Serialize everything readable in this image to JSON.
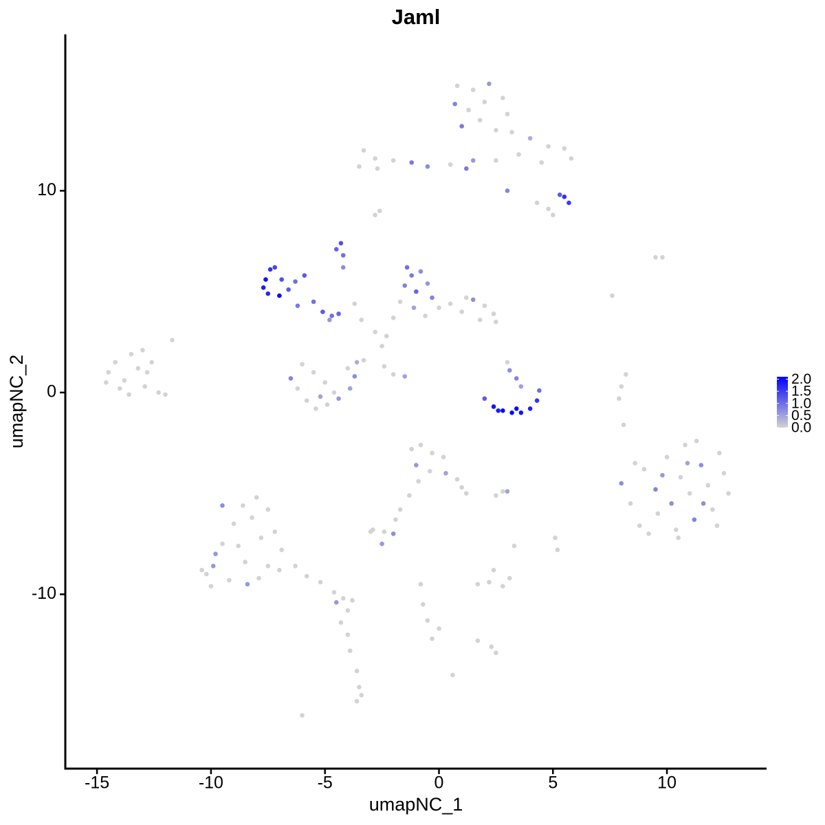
{
  "chart_data": {
    "type": "scatter",
    "title": "Jaml",
    "x_label": "umapNC_1",
    "y_label": "umapNC_2",
    "xlim": [
      -16.39,
      14.37
    ],
    "ylim": [
      -18.64,
      17.75
    ],
    "xticks": [
      -15,
      -10,
      -5,
      0,
      5,
      10
    ],
    "yticks": [
      -10,
      0,
      10
    ],
    "colors": [
      "#d3d3d3",
      "#0000ff"
    ],
    "clim": [
      0,
      2.1
    ],
    "colorbar_ticks": [
      {
        "value": 0,
        "label": "0.0"
      },
      {
        "value": 0.5,
        "label": "0.5"
      },
      {
        "value": 1,
        "label": "1.0"
      },
      {
        "value": 1.5,
        "label": "1.5"
      },
      {
        "value": 2,
        "label": "2.0"
      }
    ],
    "x": [
      -14.5,
      -14.2,
      -13.8,
      -13.5,
      -13.2,
      -12.9,
      -13.0,
      -12.6,
      -14.0,
      -12.3,
      -13.6,
      -12.0,
      -11.7,
      -12.8,
      -14.6,
      0.8,
      1.5,
      2.2,
      0.7,
      1.3,
      2.0,
      2.8,
      3.0,
      1.0,
      1.8,
      2.5,
      3.2,
      4.0,
      4.8,
      5.5,
      5.8,
      4.5,
      3.5,
      2.5,
      1.2,
      0.5,
      -0.5,
      -1.2,
      -2.0,
      -2.8,
      -3.3,
      -2.7,
      -3.5,
      5.5,
      5.7,
      5.3,
      4.8,
      4.3,
      5.0,
      3.0,
      1.5,
      -2.8,
      -2.6,
      -7.6,
      -7.7,
      -7.4,
      -7.2,
      -7.0,
      -7.5,
      -6.9,
      -6.6,
      -6.3,
      -5.9,
      -5.5,
      -5.1,
      -4.7,
      -4.4,
      -4.8,
      -6.2,
      -4.3,
      -4.5,
      -4.2,
      -4.2,
      -3.7,
      -3.4,
      -2.8,
      -1.4,
      -1.2,
      -0.8,
      -1.5,
      -1.0,
      -0.5,
      -0.3,
      -1.7,
      -1.1,
      -0.6,
      0,
      0.5,
      1.0,
      1.5,
      2.0,
      2.4,
      2.5,
      1.8,
      1.2,
      -2.0,
      -2.3,
      -2.5,
      -3.3,
      -2.4,
      -2.0,
      -1.5,
      -6.5,
      -6.2,
      -5.8,
      -5.4,
      -4.9,
      -4.4,
      -3.9,
      -3.7,
      -4.0,
      -5.0,
      -5.5,
      -6.0,
      -4.6,
      -5.2,
      -3.6,
      2.0,
      2.4,
      2.8,
      3.2,
      3.6,
      4.0,
      4.3,
      4.4,
      3.1,
      3.4,
      3.6,
      3.0,
      2.6,
      3.4,
      8.0,
      8.4,
      8.8,
      9.2,
      9.0,
      9.5,
      9.6,
      10.0,
      10.2,
      10.4,
      10.6,
      10.8,
      11.0,
      11.2,
      11.5,
      11.8,
      12.0,
      12.3,
      12.5,
      12.7,
      12.2,
      10.5,
      9.8,
      11.3,
      11.6,
      8.6,
      10.9,
      8.0,
      7.9,
      8.1,
      8.2,
      9.5,
      9.8,
      7.6,
      -1.2,
      -0.8,
      -0.3,
      0.2,
      -1.0,
      -0.4,
      0.3,
      0.8,
      1.2,
      -0.9,
      -1.3,
      -1.7,
      -1.9,
      1.0,
      2.8,
      3.0,
      2.5,
      -2.9,
      -2.4,
      -2.0,
      -2.5,
      -3.0,
      1.7,
      2.2,
      2.8,
      3.1,
      2.4,
      3.3,
      5.1,
      5.2,
      -0.8,
      -0.7,
      -0.5,
      0,
      -0.3,
      1.7,
      2.3,
      2.5,
      0.6,
      -6.0,
      -9.9,
      -10.2,
      -10.4,
      -10.0,
      -9.5,
      -9.8,
      -9.2,
      -9.0,
      -8.8,
      -8.5,
      -8.4,
      -8.6,
      -8.2,
      -7.8,
      -7.5,
      -7.9,
      -8.0,
      -7.5,
      -7.2,
      -6.9,
      -9.5,
      -7.0,
      -6.3,
      -5.8,
      -5.2,
      -4.6,
      -4.2,
      -4.5,
      -3.8,
      -4.0,
      -4.3,
      -4.0,
      -3.9,
      -3.6,
      -3.5,
      -3.4,
      -3.6
    ],
    "y": [
      1.0,
      1.5,
      0.6,
      1.9,
      1.2,
      0.3,
      2.1,
      1.5,
      0.2,
      0.0,
      -0.1,
      -0.1,
      2.6,
      1.0,
      0.5,
      15.2,
      15.0,
      15.3,
      14.3,
      14.0,
      14.4,
      14.6,
      13.8,
      13.2,
      13.5,
      13.0,
      12.9,
      12.6,
      12.2,
      12.1,
      11.6,
      11.4,
      11.8,
      11.5,
      11.1,
      11.3,
      11.2,
      11.4,
      11.5,
      11.6,
      12.0,
      11.1,
      11.2,
      9.7,
      9.4,
      9.8,
      9.1,
      9.4,
      8.8,
      10.0,
      11.5,
      8.8,
      9.0,
      5.6,
      5.2,
      6.1,
      6.2,
      4.8,
      4.9,
      5.6,
      5.1,
      5.5,
      5.8,
      4.5,
      4.0,
      3.8,
      3.9,
      3.6,
      4.3,
      7.4,
      7.1,
      6.8,
      6.2,
      4.4,
      3.6,
      3.0,
      6.2,
      5.8,
      6.0,
      5.3,
      5.0,
      5.4,
      4.7,
      4.5,
      4.2,
      3.8,
      4.2,
      4.4,
      4.0,
      4.6,
      4.3,
      3.9,
      3.5,
      3.6,
      4.7,
      3.7,
      2.8,
      2.3,
      1.6,
      1.3,
      0.9,
      0.8,
      0.7,
      0.2,
      -0.4,
      -0.8,
      -0.6,
      -0.3,
      0.2,
      0.8,
      1.2,
      0.5,
      1.0,
      1.4,
      0.0,
      -0.2,
      1.5,
      -0.3,
      -0.7,
      -0.9,
      -1.0,
      -1.0,
      -0.8,
      -0.4,
      0.1,
      1.1,
      0.7,
      0.3,
      1.5,
      -0.9,
      -0.8,
      -4.5,
      -5.5,
      -6.6,
      -7.0,
      -3.8,
      -4.8,
      -6.0,
      -3.2,
      -5.5,
      -6.8,
      -4.2,
      -2.6,
      -5.0,
      -6.3,
      -3.6,
      -4.6,
      -5.8,
      -3.0,
      -4.0,
      -5.0,
      -6.6,
      -7.2,
      -4.1,
      -2.4,
      -5.5,
      -3.5,
      -3.5,
      0.3,
      -0.3,
      -1.6,
      0.9,
      6.7,
      6.7,
      4.8,
      -2.8,
      -2.6,
      -3.0,
      -3.2,
      -3.6,
      -3.9,
      -4.0,
      -4.3,
      -5.0,
      -4.4,
      -5.1,
      -5.8,
      -6.3,
      -4.7,
      -4.9,
      -4.9,
      -5.1,
      -6.8,
      -6.9,
      -7.0,
      -7.5,
      -6.9,
      -9.5,
      -9.4,
      -9.6,
      -9.2,
      -8.8,
      -7.6,
      -7.2,
      -7.8,
      -9.5,
      -10.5,
      -11.3,
      -11.7,
      -12.2,
      -12.3,
      -12.6,
      -12.9,
      -14.0,
      -16.0,
      -8.6,
      -9.0,
      -8.8,
      -9.6,
      -7.5,
      -8.0,
      -9.3,
      -6.5,
      -7.6,
      -8.4,
      -9.5,
      -5.6,
      -6.2,
      -7.2,
      -8.6,
      -9.2,
      -5.2,
      -5.8,
      -6.9,
      -7.8,
      -5.6,
      -8.8,
      -8.6,
      -9.1,
      -9.4,
      -9.9,
      -10.2,
      -10.4,
      -10.3,
      -10.8,
      -11.4,
      -12.0,
      -12.8,
      -13.8,
      -14.6,
      -15.0,
      -15.3
    ],
    "values": [
      0,
      0,
      0,
      0,
      0,
      0,
      0,
      0,
      0,
      0,
      0,
      0,
      0,
      0,
      0,
      0,
      0,
      0.6,
      0.8,
      0,
      0,
      0,
      0,
      0.9,
      0,
      0,
      0,
      0.4,
      0,
      0,
      0,
      0,
      0,
      0,
      0.9,
      0,
      0.7,
      0.9,
      0,
      0,
      0,
      0,
      0,
      1.6,
      1.5,
      1.2,
      0,
      0,
      0,
      0.8,
      0.6,
      0,
      0,
      1.9,
      1.8,
      1.6,
      1.4,
      2.0,
      1.7,
      1.3,
      1.2,
      1.0,
      1.2,
      1.0,
      1.2,
      1.0,
      1.1,
      0.6,
      0.9,
      1.3,
      1.1,
      1.0,
      0.7,
      0,
      0,
      0,
      1.0,
      0.9,
      0.7,
      0.8,
      1.1,
      0.6,
      0.8,
      0,
      0.5,
      0,
      0,
      0,
      0,
      0.7,
      0,
      0,
      0,
      0,
      0,
      0,
      0,
      0,
      0,
      0,
      0,
      0.5,
      0.8,
      0,
      0,
      0,
      0,
      0.6,
      0.5,
      0.7,
      0,
      0,
      0,
      0,
      0,
      0.5,
      0.4,
      1.2,
      1.9,
      2.0,
      2.0,
      1.9,
      1.8,
      1.6,
      1.0,
      0.7,
      0.8,
      0.5,
      0,
      1.8,
      2.0,
      0.7,
      0,
      0,
      0,
      0,
      0.8,
      0,
      0,
      0.7,
      0,
      0,
      0,
      0,
      0.8,
      0.7,
      0,
      0,
      0,
      0,
      0,
      0,
      0,
      0.6,
      0,
      0.7,
      0,
      0.5,
      0,
      0,
      0,
      0,
      0,
      0,
      0,
      0,
      0,
      0,
      0,
      0.6,
      0,
      0.5,
      0,
      0,
      0,
      0,
      0,
      0,
      0,
      0,
      0.5,
      0,
      0,
      0,
      0.7,
      0.6,
      0,
      0,
      0,
      0,
      0,
      0,
      0,
      0,
      0,
      0,
      0,
      0,
      0,
      0,
      0,
      0,
      0,
      0,
      0,
      0.6,
      0,
      0,
      0,
      0,
      0.6,
      0,
      0,
      0,
      0,
      0.6,
      0,
      0,
      0,
      0,
      0,
      0,
      0,
      0,
      0,
      0.7,
      0,
      0,
      0,
      0,
      0,
      0,
      0.6,
      0,
      0,
      0,
      0,
      0,
      0,
      0,
      0,
      0
    ]
  }
}
